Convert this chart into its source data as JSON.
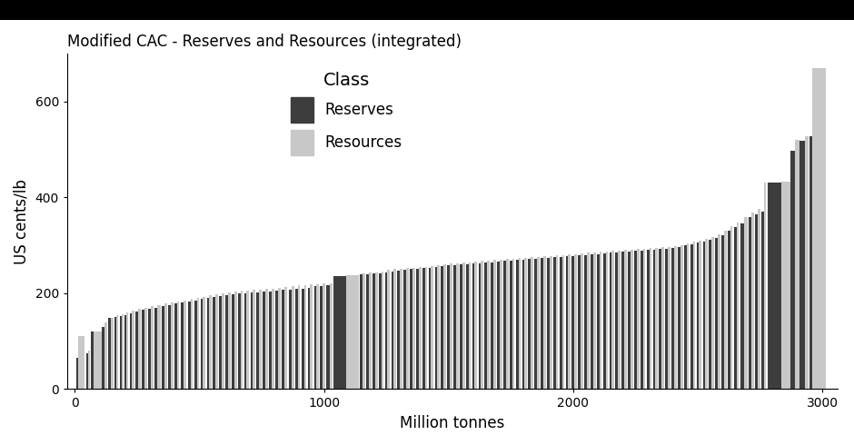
{
  "title": "Modified CAC - Reserves and Resources (integrated)",
  "xlabel": "Million tonnes",
  "ylabel": "US cents/lb",
  "legend_title": "Class",
  "legend_entries": [
    "Reserves",
    "Resources"
  ],
  "reserves_color": "#3d3d3d",
  "resources_color": "#c8c8c8",
  "background_color": "#FFFFFF",
  "xlim": [
    -30,
    3060
  ],
  "ylim": [
    0,
    700
  ],
  "yticks": [
    0,
    200,
    400,
    600
  ],
  "xticks": [
    0,
    1000,
    2000,
    3000
  ],
  "deposits": [
    {
      "x": 5,
      "wr": 10,
      "wres": 25,
      "cr": 65,
      "cres": 110
    },
    {
      "x": 45,
      "wr": 8,
      "wres": 8,
      "cr": 75,
      "cres": 80
    },
    {
      "x": 65,
      "wr": 12,
      "wres": 30,
      "cr": 120,
      "cres": 120
    },
    {
      "x": 110,
      "wr": 10,
      "wres": 10,
      "cr": 130,
      "cres": 140
    },
    {
      "x": 135,
      "wr": 10,
      "wres": 10,
      "cr": 148,
      "cres": 148
    },
    {
      "x": 160,
      "wr": 8,
      "wres": 8,
      "cr": 150,
      "cres": 155
    },
    {
      "x": 180,
      "wr": 8,
      "wres": 8,
      "cr": 152,
      "cres": 157
    },
    {
      "x": 200,
      "wr": 8,
      "wres": 8,
      "cr": 155,
      "cres": 160
    },
    {
      "x": 220,
      "wr": 10,
      "wres": 10,
      "cr": 158,
      "cres": 163
    },
    {
      "x": 245,
      "wr": 10,
      "wres": 10,
      "cr": 162,
      "cres": 167
    },
    {
      "x": 270,
      "wr": 10,
      "wres": 10,
      "cr": 165,
      "cres": 170
    },
    {
      "x": 295,
      "wr": 10,
      "wres": 10,
      "cr": 168,
      "cres": 173
    },
    {
      "x": 320,
      "wr": 12,
      "wres": 12,
      "cr": 170,
      "cres": 175
    },
    {
      "x": 350,
      "wr": 10,
      "wres": 10,
      "cr": 173,
      "cres": 178
    },
    {
      "x": 375,
      "wr": 10,
      "wres": 10,
      "cr": 175,
      "cres": 180
    },
    {
      "x": 400,
      "wr": 10,
      "wres": 10,
      "cr": 178,
      "cres": 183
    },
    {
      "x": 425,
      "wr": 12,
      "wres": 12,
      "cr": 180,
      "cres": 185
    },
    {
      "x": 455,
      "wr": 10,
      "wres": 10,
      "cr": 183,
      "cres": 188
    },
    {
      "x": 480,
      "wr": 10,
      "wres": 10,
      "cr": 185,
      "cres": 190
    },
    {
      "x": 505,
      "wr": 10,
      "wres": 10,
      "cr": 188,
      "cres": 193
    },
    {
      "x": 530,
      "wr": 10,
      "wres": 10,
      "cr": 190,
      "cres": 195
    },
    {
      "x": 555,
      "wr": 10,
      "wres": 10,
      "cr": 192,
      "cres": 197
    },
    {
      "x": 580,
      "wr": 10,
      "wres": 10,
      "cr": 194,
      "cres": 199
    },
    {
      "x": 605,
      "wr": 10,
      "wres": 10,
      "cr": 196,
      "cres": 201
    },
    {
      "x": 630,
      "wr": 10,
      "wres": 10,
      "cr": 198,
      "cres": 203
    },
    {
      "x": 655,
      "wr": 10,
      "wres": 10,
      "cr": 200,
      "cres": 205
    },
    {
      "x": 680,
      "wr": 10,
      "wres": 10,
      "cr": 200,
      "cres": 206
    },
    {
      "x": 705,
      "wr": 10,
      "wres": 10,
      "cr": 201,
      "cres": 207
    },
    {
      "x": 730,
      "wr": 10,
      "wres": 10,
      "cr": 202,
      "cres": 208
    },
    {
      "x": 755,
      "wr": 10,
      "wres": 10,
      "cr": 203,
      "cres": 209
    },
    {
      "x": 780,
      "wr": 10,
      "wres": 10,
      "cr": 204,
      "cres": 210
    },
    {
      "x": 805,
      "wr": 10,
      "wres": 10,
      "cr": 205,
      "cres": 211
    },
    {
      "x": 830,
      "wr": 12,
      "wres": 12,
      "cr": 207,
      "cres": 213
    },
    {
      "x": 860,
      "wr": 10,
      "wres": 10,
      "cr": 208,
      "cres": 214
    },
    {
      "x": 885,
      "wr": 10,
      "wres": 10,
      "cr": 210,
      "cres": 216
    },
    {
      "x": 910,
      "wr": 10,
      "wres": 10,
      "cr": 210,
      "cres": 216
    },
    {
      "x": 935,
      "wr": 10,
      "wres": 10,
      "cr": 212,
      "cres": 218
    },
    {
      "x": 960,
      "wr": 10,
      "wres": 10,
      "cr": 214,
      "cres": 219
    },
    {
      "x": 985,
      "wr": 10,
      "wres": 10,
      "cr": 215,
      "cres": 220
    },
    {
      "x": 1010,
      "wr": 12,
      "wres": 12,
      "cr": 216,
      "cres": 221
    },
    {
      "x": 1040,
      "wr": 50,
      "wres": 50,
      "cr": 235,
      "cres": 238
    },
    {
      "x": 1145,
      "wr": 10,
      "wres": 10,
      "cr": 239,
      "cres": 242
    },
    {
      "x": 1170,
      "wr": 10,
      "wres": 10,
      "cr": 240,
      "cres": 243
    },
    {
      "x": 1195,
      "wr": 10,
      "wres": 10,
      "cr": 241,
      "cres": 244
    },
    {
      "x": 1220,
      "wr": 10,
      "wres": 10,
      "cr": 242,
      "cres": 246
    },
    {
      "x": 1245,
      "wr": 10,
      "wres": 10,
      "cr": 244,
      "cres": 248
    },
    {
      "x": 1270,
      "wr": 10,
      "wres": 10,
      "cr": 246,
      "cres": 250
    },
    {
      "x": 1295,
      "wr": 10,
      "wres": 10,
      "cr": 247,
      "cres": 251
    },
    {
      "x": 1320,
      "wr": 10,
      "wres": 10,
      "cr": 248,
      "cres": 252
    },
    {
      "x": 1345,
      "wr": 10,
      "wres": 10,
      "cr": 250,
      "cres": 253
    },
    {
      "x": 1370,
      "wr": 10,
      "wres": 10,
      "cr": 251,
      "cres": 254
    },
    {
      "x": 1395,
      "wr": 10,
      "wres": 10,
      "cr": 252,
      "cres": 255
    },
    {
      "x": 1420,
      "wr": 10,
      "wres": 10,
      "cr": 253,
      "cres": 256
    },
    {
      "x": 1445,
      "wr": 10,
      "wres": 10,
      "cr": 254,
      "cres": 258
    },
    {
      "x": 1470,
      "wr": 10,
      "wres": 10,
      "cr": 256,
      "cres": 260
    },
    {
      "x": 1495,
      "wr": 10,
      "wres": 10,
      "cr": 258,
      "cres": 262
    },
    {
      "x": 1520,
      "wr": 10,
      "wres": 10,
      "cr": 259,
      "cres": 263
    },
    {
      "x": 1545,
      "wr": 10,
      "wres": 10,
      "cr": 260,
      "cres": 264
    },
    {
      "x": 1570,
      "wr": 10,
      "wres": 10,
      "cr": 261,
      "cres": 265
    },
    {
      "x": 1595,
      "wr": 10,
      "wres": 10,
      "cr": 262,
      "cres": 266
    },
    {
      "x": 1620,
      "wr": 10,
      "wres": 10,
      "cr": 263,
      "cres": 267
    },
    {
      "x": 1645,
      "wr": 10,
      "wres": 10,
      "cr": 264,
      "cres": 268
    },
    {
      "x": 1670,
      "wr": 10,
      "wres": 10,
      "cr": 265,
      "cres": 269
    },
    {
      "x": 1695,
      "wr": 10,
      "wres": 10,
      "cr": 266,
      "cres": 270
    },
    {
      "x": 1720,
      "wr": 10,
      "wres": 10,
      "cr": 267,
      "cres": 271
    },
    {
      "x": 1745,
      "wr": 10,
      "wres": 10,
      "cr": 268,
      "cres": 272
    },
    {
      "x": 1770,
      "wr": 10,
      "wres": 10,
      "cr": 269,
      "cres": 273
    },
    {
      "x": 1795,
      "wr": 10,
      "wres": 10,
      "cr": 270,
      "cres": 274
    },
    {
      "x": 1820,
      "wr": 10,
      "wres": 10,
      "cr": 271,
      "cres": 275
    },
    {
      "x": 1845,
      "wr": 10,
      "wres": 10,
      "cr": 272,
      "cres": 276
    },
    {
      "x": 1870,
      "wr": 10,
      "wres": 10,
      "cr": 273,
      "cres": 277
    },
    {
      "x": 1895,
      "wr": 10,
      "wres": 10,
      "cr": 274,
      "cres": 278
    },
    {
      "x": 1920,
      "wr": 10,
      "wres": 10,
      "cr": 275,
      "cres": 279
    },
    {
      "x": 1945,
      "wr": 10,
      "wres": 10,
      "cr": 276,
      "cres": 280
    },
    {
      "x": 1970,
      "wr": 10,
      "wres": 10,
      "cr": 277,
      "cres": 281
    },
    {
      "x": 1995,
      "wr": 10,
      "wres": 10,
      "cr": 278,
      "cres": 282
    },
    {
      "x": 2020,
      "wr": 10,
      "wres": 10,
      "cr": 279,
      "cres": 283
    },
    {
      "x": 2045,
      "wr": 10,
      "wres": 10,
      "cr": 280,
      "cres": 284
    },
    {
      "x": 2070,
      "wr": 10,
      "wres": 10,
      "cr": 281,
      "cres": 285
    },
    {
      "x": 2095,
      "wr": 10,
      "wres": 10,
      "cr": 282,
      "cres": 286
    },
    {
      "x": 2120,
      "wr": 10,
      "wres": 10,
      "cr": 283,
      "cres": 287
    },
    {
      "x": 2145,
      "wr": 10,
      "wres": 10,
      "cr": 284,
      "cres": 288
    },
    {
      "x": 2170,
      "wr": 10,
      "wres": 10,
      "cr": 285,
      "cres": 289
    },
    {
      "x": 2195,
      "wr": 10,
      "wres": 10,
      "cr": 286,
      "cres": 290
    },
    {
      "x": 2220,
      "wr": 10,
      "wres": 10,
      "cr": 287,
      "cres": 291
    },
    {
      "x": 2245,
      "wr": 10,
      "wres": 10,
      "cr": 288,
      "cres": 292
    },
    {
      "x": 2270,
      "wr": 10,
      "wres": 10,
      "cr": 289,
      "cres": 293
    },
    {
      "x": 2295,
      "wr": 10,
      "wres": 10,
      "cr": 290,
      "cres": 294
    },
    {
      "x": 2320,
      "wr": 10,
      "wres": 10,
      "cr": 291,
      "cres": 295
    },
    {
      "x": 2345,
      "wr": 10,
      "wres": 10,
      "cr": 292,
      "cres": 296
    },
    {
      "x": 2370,
      "wr": 10,
      "wres": 10,
      "cr": 293,
      "cres": 297
    },
    {
      "x": 2395,
      "wr": 10,
      "wres": 10,
      "cr": 295,
      "cres": 299
    },
    {
      "x": 2420,
      "wr": 10,
      "wres": 10,
      "cr": 297,
      "cres": 301
    },
    {
      "x": 2445,
      "wr": 10,
      "wres": 10,
      "cr": 300,
      "cres": 304
    },
    {
      "x": 2470,
      "wr": 10,
      "wres": 10,
      "cr": 302,
      "cres": 307
    },
    {
      "x": 2495,
      "wr": 10,
      "wres": 10,
      "cr": 305,
      "cres": 310
    },
    {
      "x": 2520,
      "wr": 10,
      "wres": 10,
      "cr": 308,
      "cres": 314
    },
    {
      "x": 2545,
      "wr": 10,
      "wres": 10,
      "cr": 312,
      "cres": 318
    },
    {
      "x": 2570,
      "wr": 10,
      "wres": 10,
      "cr": 316,
      "cres": 322
    },
    {
      "x": 2595,
      "wr": 10,
      "wres": 10,
      "cr": 320,
      "cres": 330
    },
    {
      "x": 2620,
      "wr": 10,
      "wres": 10,
      "cr": 330,
      "cres": 340
    },
    {
      "x": 2645,
      "wr": 10,
      "wres": 10,
      "cr": 338,
      "cres": 348
    },
    {
      "x": 2670,
      "wr": 15,
      "wres": 15,
      "cr": 345,
      "cres": 358
    },
    {
      "x": 2705,
      "wr": 10,
      "wres": 10,
      "cr": 358,
      "cres": 368
    },
    {
      "x": 2730,
      "wr": 10,
      "wres": 10,
      "cr": 365,
      "cres": 375
    },
    {
      "x": 2755,
      "wr": 10,
      "wres": 10,
      "cr": 370,
      "cres": 430
    },
    {
      "x": 2780,
      "wr": 55,
      "wres": 60,
      "cr": 430,
      "cres": 432
    },
    {
      "x": 2870,
      "wr": 20,
      "wres": 20,
      "cr": 498,
      "cres": 520
    },
    {
      "x": 2910,
      "wr": 20,
      "wres": 15,
      "cr": 518,
      "cres": 527
    },
    {
      "x": 2950,
      "wr": 10,
      "wres": 55,
      "cr": 527,
      "cres": 670
    }
  ]
}
